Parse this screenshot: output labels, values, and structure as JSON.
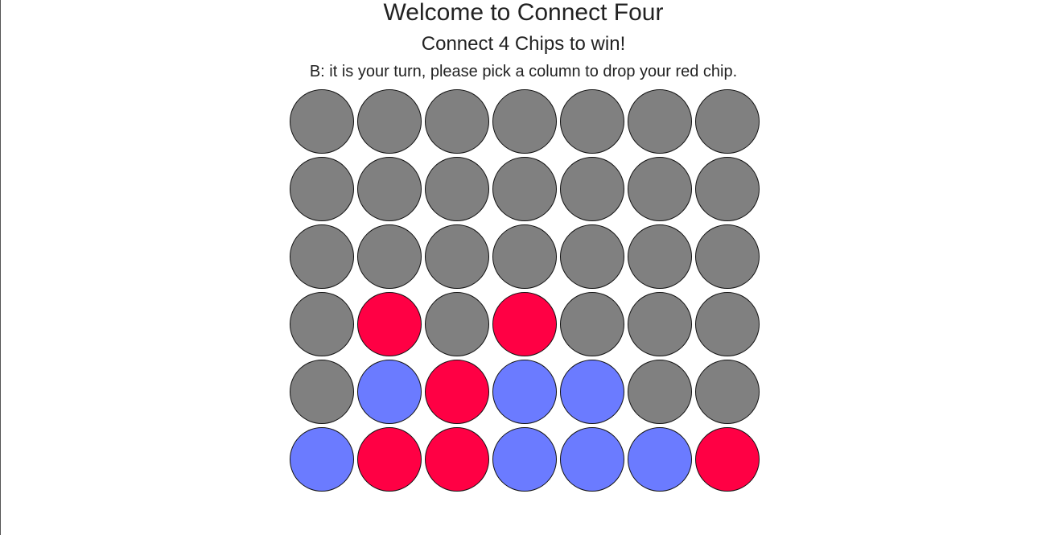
{
  "header": {
    "title": "Welcome to Connect Four",
    "subtitle": "Connect 4 Chips to win!",
    "status": "B: it is your turn, please pick a column to drop your red chip."
  },
  "colors": {
    "empty": "#808080",
    "red": "#ff0044",
    "blue": "#6b7bff"
  },
  "board": {
    "columns": 7,
    "rows": [
      [
        "empty",
        "empty",
        "empty",
        "empty",
        "empty",
        "empty",
        "empty"
      ],
      [
        "empty",
        "empty",
        "empty",
        "empty",
        "empty",
        "empty",
        "empty"
      ],
      [
        "empty",
        "empty",
        "empty",
        "empty",
        "empty",
        "empty",
        "empty"
      ],
      [
        "empty",
        "red",
        "empty",
        "red",
        "empty",
        "empty",
        "empty"
      ],
      [
        "empty",
        "blue",
        "red",
        "blue",
        "blue",
        "empty",
        "empty"
      ],
      [
        "blue",
        "red",
        "red",
        "blue",
        "blue",
        "blue",
        "red"
      ]
    ]
  }
}
